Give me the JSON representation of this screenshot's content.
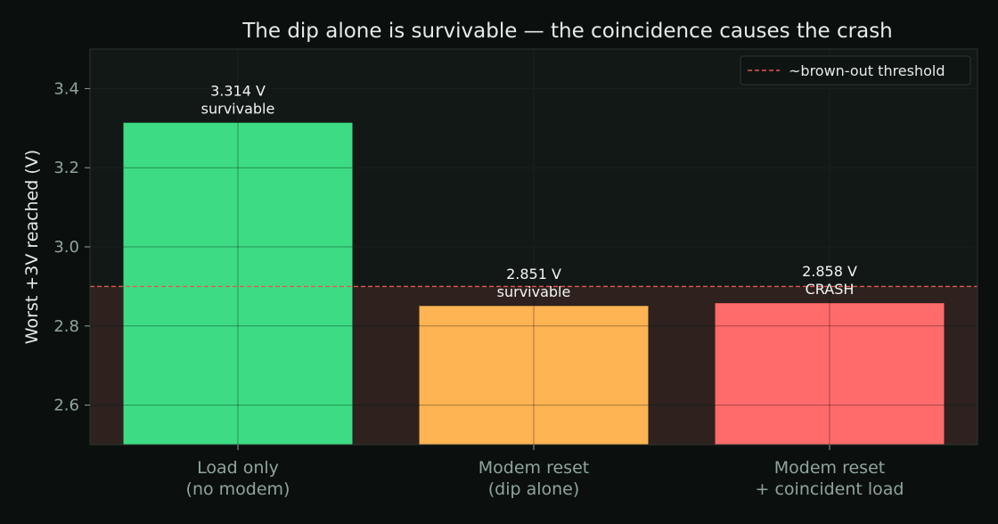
{
  "chart_data": {
    "type": "bar",
    "title": "The dip alone is survivable — the coincidence causes the crash",
    "xlabel": "",
    "ylabel": "Worst +3V reached (V)",
    "ylim": [
      2.5,
      3.5
    ],
    "yticks": [
      2.6,
      2.8,
      3.0,
      3.2,
      3.4
    ],
    "ytick_labels": [
      "2.6",
      "2.8",
      "3.0",
      "3.2",
      "3.4"
    ],
    "grid": true,
    "categories": [
      [
        "Load only",
        "(no modem)"
      ],
      [
        "Modem reset",
        "(dip alone)"
      ],
      [
        "Modem reset",
        "+ coincident load"
      ]
    ],
    "values": [
      3.314,
      2.851,
      2.858
    ],
    "bar_labels": [
      [
        "3.314 V",
        "survivable"
      ],
      [
        "2.851 V",
        "survivable"
      ],
      [
        "2.858 V",
        "CRASH"
      ]
    ],
    "bar_colors": [
      "#3ddc84",
      "#ffb454",
      "#ff6b6b"
    ],
    "threshold": {
      "value": 2.9,
      "label": "~brown-out threshold",
      "color": "#e05a4f"
    },
    "danger_zone_color": "#2e211e",
    "legend_position": "top-right"
  }
}
